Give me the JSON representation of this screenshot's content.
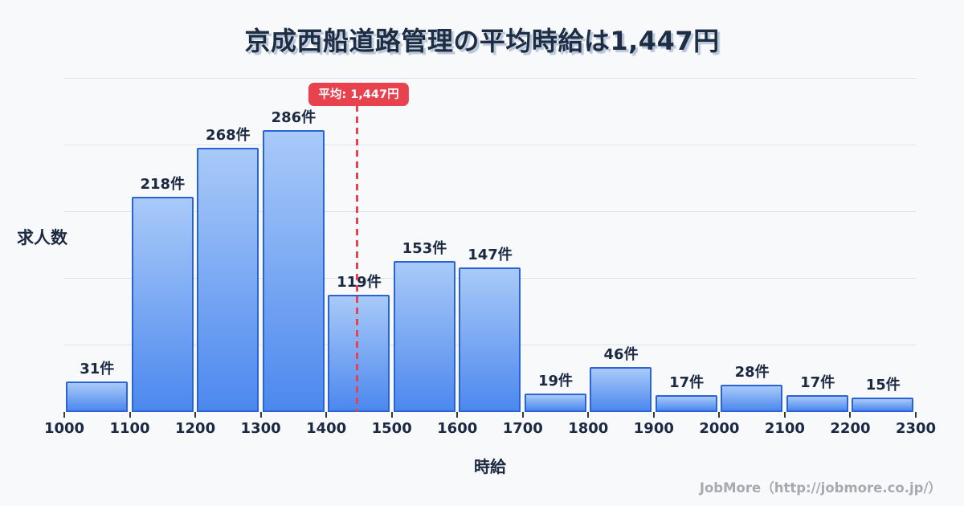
{
  "title": "京成西船道路管理の平均時給は1,447円",
  "chart_data": {
    "type": "bar",
    "subtype": "histogram",
    "title": "京成西船道路管理の平均時給は1,447円",
    "xlabel": "時給",
    "ylabel": "求人数",
    "bin_edges": [
      1000,
      1100,
      1200,
      1300,
      1400,
      1500,
      1600,
      1700,
      1800,
      1900,
      2000,
      2100,
      2200,
      2300
    ],
    "values": [
      31,
      218,
      268,
      286,
      119,
      153,
      147,
      19,
      46,
      17,
      28,
      17,
      15
    ],
    "value_unit": "件",
    "bar_labels": [
      "31件",
      "218件",
      "268件",
      "286件",
      "119件",
      "153件",
      "147件",
      "19件",
      "46件",
      "17件",
      "28件",
      "17件",
      "15件"
    ],
    "x_tick_labels": [
      "1000",
      "1100",
      "1200",
      "1300",
      "1400",
      "1500",
      "1600",
      "1700",
      "1800",
      "1900",
      "2000",
      "2100",
      "2200",
      "2300"
    ],
    "average": {
      "value": 1447,
      "label": "平均: 1,447円"
    },
    "grid": {
      "horizontal": true,
      "lines": 5,
      "y_tick_labels_shown": false
    },
    "legend_position": "none",
    "colors": {
      "background": "#f8f9fb",
      "title_text": "#1d2e44",
      "label_text": "#1b2942",
      "bar_fill_top": "#a9caf8",
      "bar_fill_bottom": "#4c88ee",
      "bar_border": "#2a63d6",
      "gridline": "#dde2ee",
      "tick_mark": "#323949",
      "average_red": "#e8424e",
      "footer_text": "#a7aaaf"
    }
  },
  "footer": {
    "credit": "JobMore（http://jobmore.co.jp/）"
  }
}
